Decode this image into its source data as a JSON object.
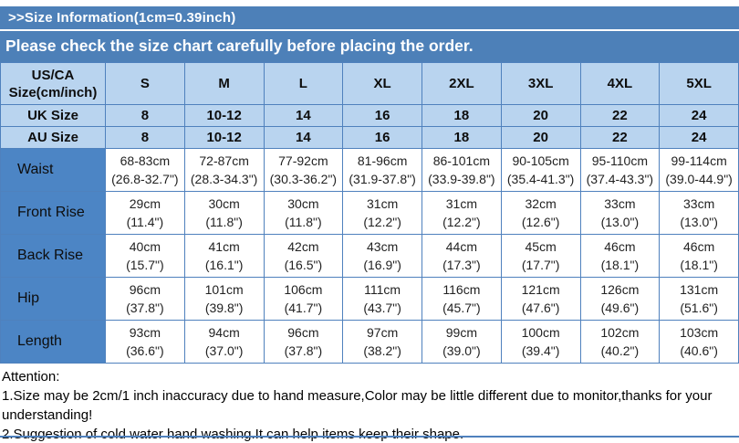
{
  "banner": {
    "title": ">>Size Information(1cm=0.39inch)",
    "subtitle": "Please check the size chart carefully before placing the order."
  },
  "colors": {
    "banner_bg": "#4d80b8",
    "label_cell_bg": "#4c85c5",
    "light_cell_bg": "#b9d4ef",
    "border": "#4f81bd",
    "banner_text": "#ffffff",
    "body_text": "#111111"
  },
  "table": {
    "corner_header": "US/CA Size(cm/inch)",
    "size_columns": [
      "S",
      "M",
      "L",
      "XL",
      "2XL",
      "3XL",
      "4XL",
      "5XL"
    ],
    "size_rows": [
      {
        "label": "UK Size",
        "values": [
          "8",
          "10-12",
          "14",
          "16",
          "18",
          "20",
          "22",
          "24"
        ]
      },
      {
        "label": "AU Size",
        "values": [
          "8",
          "10-12",
          "14",
          "16",
          "18",
          "20",
          "22",
          "24"
        ]
      }
    ],
    "measurement_rows": [
      {
        "label": "Waist",
        "cm": [
          "68-83cm",
          "72-87cm",
          "77-92cm",
          "81-96cm",
          "86-101cm",
          "90-105cm",
          "95-110cm",
          "99-114cm"
        ],
        "inch": [
          "(26.8-32.7\")",
          "(28.3-34.3\")",
          "(30.3-36.2\")",
          "(31.9-37.8\")",
          "(33.9-39.8\")",
          "(35.4-41.3\")",
          "(37.4-43.3\")",
          "(39.0-44.9\")"
        ]
      },
      {
        "label": "Front Rise",
        "cm": [
          "29cm",
          "30cm",
          "30cm",
          "31cm",
          "31cm",
          "32cm",
          "33cm",
          "33cm"
        ],
        "inch": [
          "(11.4\")",
          "(11.8\")",
          "(11.8\")",
          "(12.2\")",
          "(12.2\")",
          "(12.6\")",
          "(13.0\")",
          "(13.0\")"
        ]
      },
      {
        "label": "Back Rise",
        "cm": [
          "40cm",
          "41cm",
          "42cm",
          "43cm",
          "44cm",
          "45cm",
          "46cm",
          "46cm"
        ],
        "inch": [
          "(15.7\")",
          "(16.1\")",
          "(16.5\")",
          "(16.9\")",
          "(17.3\")",
          "(17.7\")",
          "(18.1\")",
          "(18.1\")"
        ]
      },
      {
        "label": "Hip",
        "cm": [
          "96cm",
          "101cm",
          "106cm",
          "111cm",
          "116cm",
          "121cm",
          "126cm",
          "131cm"
        ],
        "inch": [
          "(37.8\")",
          "(39.8\")",
          "(41.7\")",
          "(43.7\")",
          "(45.7\")",
          "(47.6\")",
          "(49.6\")",
          "(51.6\")"
        ]
      },
      {
        "label": "Length",
        "cm": [
          "93cm",
          "94cm",
          "96cm",
          "97cm",
          "99cm",
          "100cm",
          "102cm",
          "103cm"
        ],
        "inch": [
          "(36.6\")",
          "(37.0\")",
          "(37.8\")",
          "(38.2\")",
          "(39.0\")",
          "(39.4\")",
          "(40.2\")",
          "(40.6\")"
        ]
      }
    ]
  },
  "attention": {
    "heading": "Attention:",
    "notes": [
      "1.Size may be 2cm/1 inch inaccuracy due to hand measure,Color may be little different due to monitor,thanks for your understanding!",
      "2.Suggestion of cold water hand washing.It can help items keep their shape."
    ]
  }
}
